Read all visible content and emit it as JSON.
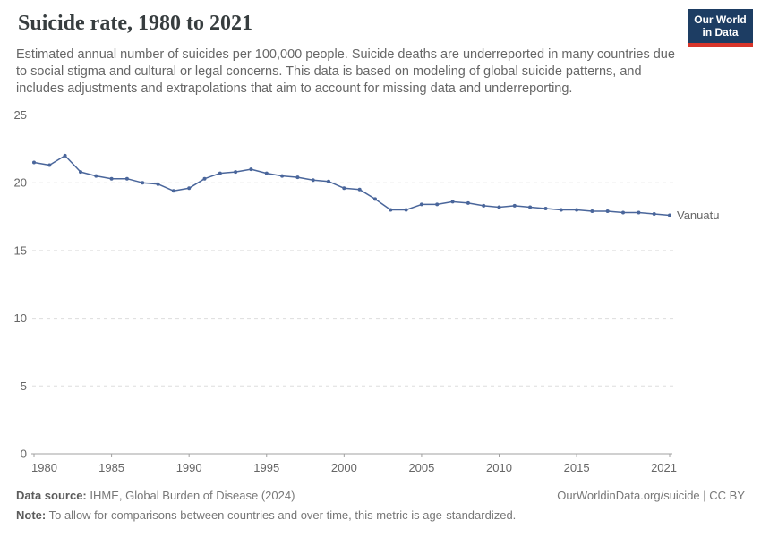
{
  "header": {
    "title": "Suicide rate, 1980 to 2021",
    "subtitle": "Estimated annual number of suicides per 100,000 people. Suicide deaths are underreported in many countries due to social stigma and cultural or legal concerns. This data is based on modeling of global suicide patterns, and includes adjustments and extrapolations that aim to account for missing data and underreporting.",
    "logo_line1": "Our World",
    "logo_line2": "in Data",
    "logo_bg_color": "#1d3d63",
    "logo_accent_color": "#d8352a"
  },
  "chart_data": {
    "type": "line",
    "title": "Suicide rate, 1980 to 2021",
    "xlabel": "",
    "ylabel": "",
    "x": [
      1980,
      1981,
      1982,
      1983,
      1984,
      1985,
      1986,
      1987,
      1988,
      1989,
      1990,
      1991,
      1992,
      1993,
      1994,
      1995,
      1996,
      1997,
      1998,
      1999,
      2000,
      2001,
      2002,
      2003,
      2004,
      2005,
      2006,
      2007,
      2008,
      2009,
      2010,
      2011,
      2012,
      2013,
      2014,
      2015,
      2016,
      2017,
      2018,
      2019,
      2020,
      2021
    ],
    "series": [
      {
        "name": "Vanuatu",
        "color": "#4a669b",
        "values": [
          21.5,
          21.3,
          22.0,
          20.8,
          20.5,
          20.3,
          20.3,
          20.0,
          19.9,
          19.4,
          19.6,
          20.3,
          20.7,
          20.8,
          21.0,
          20.7,
          20.5,
          20.4,
          20.2,
          20.1,
          19.6,
          19.5,
          18.8,
          18.0,
          18.0,
          18.4,
          18.4,
          18.6,
          18.5,
          18.3,
          18.2,
          18.3,
          18.2,
          18.1,
          18.0,
          18.0,
          17.9,
          17.9,
          17.8,
          17.8,
          17.7,
          17.6
        ]
      }
    ],
    "xlim": [
      1980,
      2021
    ],
    "ylim": [
      0,
      25
    ],
    "x_ticks": [
      1980,
      1985,
      1990,
      1995,
      2000,
      2005,
      2010,
      2015,
      2021
    ],
    "y_ticks": [
      0,
      5,
      10,
      15,
      20,
      25
    ],
    "grid": "dashed-horizontal",
    "legend_position": "end-of-line-label",
    "gridline_color": "#dddddd",
    "axis_color": "#a0a0a0",
    "tick_label_color": "#666666"
  },
  "footer": {
    "data_source_label": "Data source:",
    "data_source_value": " IHME, Global Burden of Disease (2024)",
    "note_label": "Note:",
    "note_value": " To allow for comparisons between countries and over time, this metric is age-standardized.",
    "rights": "OurWorldinData.org/suicide | CC BY"
  }
}
